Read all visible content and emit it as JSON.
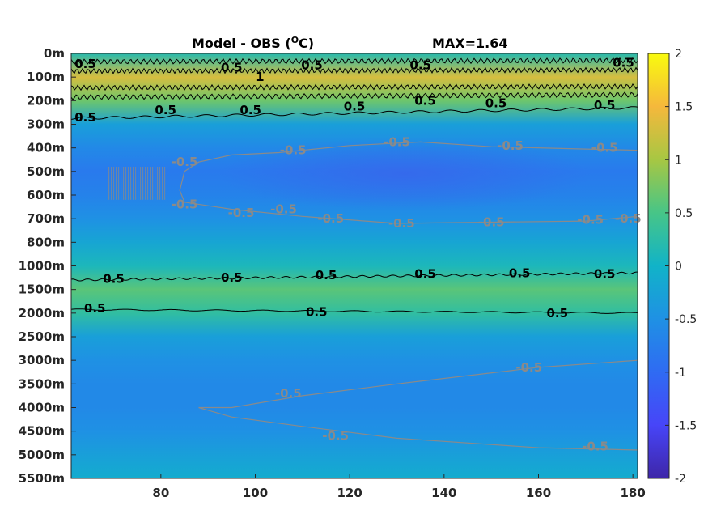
{
  "chart_data": {
    "type": "heatmap",
    "title": "Model - OBS (",
    "title_unit": "O",
    "title_unit_suffix": "C)",
    "max_label": "MAX=1.64",
    "xlim": [
      61,
      181
    ],
    "x_ticks": [
      80,
      100,
      120,
      140,
      160,
      180
    ],
    "y_ticks": [
      "0m",
      "100m",
      "200m",
      "300m",
      "400m",
      "500m",
      "600m",
      "700m",
      "800m",
      "1000m",
      "1500m",
      "2000m",
      "2500m",
      "3000m",
      "3500m",
      "4000m",
      "4500m",
      "5000m",
      "5500m"
    ],
    "colorbar": {
      "clim": [
        -2,
        2
      ],
      "ticks": [
        "2",
        "1.5",
        "1",
        "0.5",
        "0",
        "-0.5",
        "-1",
        "-1.5",
        "-2"
      ]
    },
    "layers": [
      {
        "depth": "0m",
        "value": 0.2
      },
      {
        "depth": "100m",
        "value": 1.3
      },
      {
        "depth": "200m",
        "value": 0.7
      },
      {
        "depth": "300m",
        "value": -0.3
      },
      {
        "depth": "400m",
        "value": -0.6
      },
      {
        "depth": "500m",
        "value": -0.8
      },
      {
        "depth": "600m",
        "value": -0.7
      },
      {
        "depth": "700m",
        "value": -0.5
      },
      {
        "depth": "800m",
        "value": -0.2
      },
      {
        "depth": "1000m",
        "value": 0.1
      },
      {
        "depth": "1500m",
        "value": 0.6
      },
      {
        "depth": "2000m",
        "value": 0.3
      },
      {
        "depth": "2500m",
        "value": -0.3
      },
      {
        "depth": "3000m",
        "value": -0.5
      },
      {
        "depth": "3500m",
        "value": -0.6
      },
      {
        "depth": "4000m",
        "value": -0.6
      },
      {
        "depth": "4500m",
        "value": -0.5
      },
      {
        "depth": "5000m",
        "value": -0.3
      },
      {
        "depth": "5500m",
        "value": -0.1
      }
    ],
    "contour_labels": [
      {
        "text": "0.5",
        "x": 64,
        "depth": 0.45,
        "color": "black"
      },
      {
        "text": "0.5",
        "x": 95,
        "depth": 0.6,
        "color": "black"
      },
      {
        "text": "0.5",
        "x": 112,
        "depth": 0.5,
        "color": "black"
      },
      {
        "text": "0.5",
        "x": 135,
        "depth": 0.5,
        "color": "black"
      },
      {
        "text": "0.5",
        "x": 178,
        "depth": 0.4,
        "color": "black"
      },
      {
        "text": "1",
        "x": 101,
        "depth": 1.0,
        "color": "black"
      },
      {
        "text": "0.5",
        "x": 64,
        "depth": 2.7,
        "color": "black"
      },
      {
        "text": "0.5",
        "x": 81,
        "depth": 2.4,
        "color": "black"
      },
      {
        "text": "0.5",
        "x": 99,
        "depth": 2.4,
        "color": "black"
      },
      {
        "text": "0.5",
        "x": 121,
        "depth": 2.25,
        "color": "black"
      },
      {
        "text": "0.5",
        "x": 136,
        "depth": 2.0,
        "color": "black"
      },
      {
        "text": "0.5",
        "x": 151,
        "depth": 2.1,
        "color": "black"
      },
      {
        "text": "0.5",
        "x": 174,
        "depth": 2.2,
        "color": "black"
      },
      {
        "text": "-0.5",
        "x": 85,
        "depth": 4.6,
        "color": "gray"
      },
      {
        "text": "-0.5",
        "x": 108,
        "depth": 4.1,
        "color": "gray"
      },
      {
        "text": "-0.5",
        "x": 130,
        "depth": 3.75,
        "color": "gray"
      },
      {
        "text": "-0.5",
        "x": 154,
        "depth": 3.9,
        "color": "gray"
      },
      {
        "text": "-0.5",
        "x": 174,
        "depth": 4.0,
        "color": "gray"
      },
      {
        "text": "-0.5",
        "x": 85,
        "depth": 6.4,
        "color": "gray"
      },
      {
        "text": "-0.5",
        "x": 97,
        "depth": 6.75,
        "color": "gray"
      },
      {
        "text": "-0.5",
        "x": 106,
        "depth": 6.6,
        "color": "gray"
      },
      {
        "text": "-0.5",
        "x": 116,
        "depth": 7.0,
        "color": "gray"
      },
      {
        "text": "-0.5",
        "x": 131,
        "depth": 7.2,
        "color": "gray"
      },
      {
        "text": "-0.5",
        "x": 150,
        "depth": 7.15,
        "color": "gray"
      },
      {
        "text": "-0.5",
        "x": 171,
        "depth": 7.05,
        "color": "gray"
      },
      {
        "text": "-0.5",
        "x": 179,
        "depth": 7.0,
        "color": "gray"
      },
      {
        "text": "0.5",
        "x": 70,
        "depth": 9.55,
        "color": "black"
      },
      {
        "text": "0.5",
        "x": 95,
        "depth": 9.5,
        "color": "black"
      },
      {
        "text": "0.5",
        "x": 115,
        "depth": 9.4,
        "color": "black"
      },
      {
        "text": "0.5",
        "x": 136,
        "depth": 9.35,
        "color": "black"
      },
      {
        "text": "0.5",
        "x": 156,
        "depth": 9.3,
        "color": "black"
      },
      {
        "text": "0.5",
        "x": 174,
        "depth": 9.35,
        "color": "black"
      },
      {
        "text": "0.5",
        "x": 66,
        "depth": 10.8,
        "color": "black"
      },
      {
        "text": "0.5",
        "x": 113,
        "depth": 10.95,
        "color": "black"
      },
      {
        "text": "0.5",
        "x": 164,
        "depth": 11.0,
        "color": "black"
      },
      {
        "text": "-0.5",
        "x": 158,
        "depth": 13.3,
        "color": "gray"
      },
      {
        "text": "-0.5",
        "x": 107,
        "depth": 14.4,
        "color": "gray"
      },
      {
        "text": "-0.5",
        "x": 117,
        "depth": 16.2,
        "color": "gray"
      },
      {
        "text": "-0.5",
        "x": 172,
        "depth": 16.65,
        "color": "gray"
      }
    ]
  }
}
